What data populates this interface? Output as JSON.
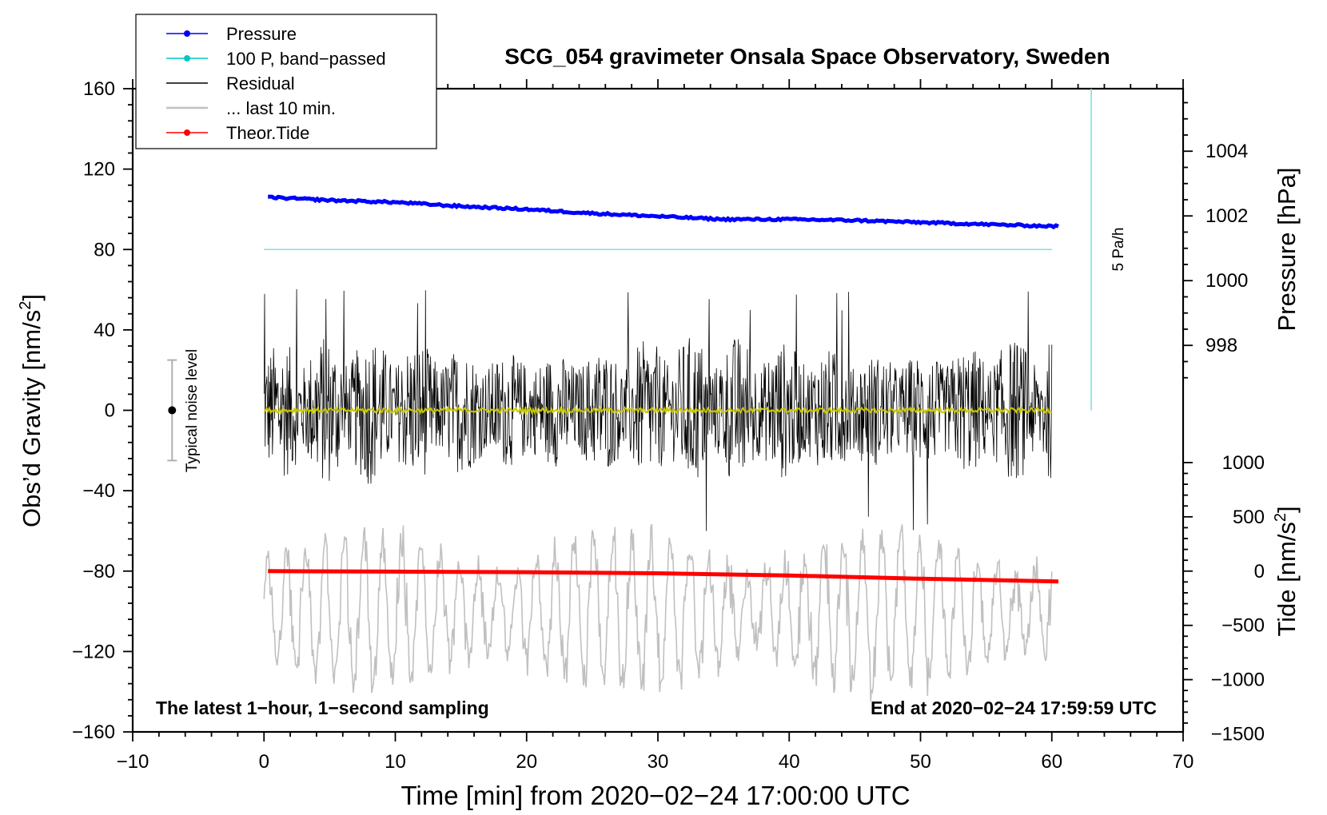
{
  "chart_data": {
    "type": "line",
    "title": "SCG_054 gravimeter Onsala Space Observatory, Sweden",
    "xlabel": "Time [min] from 2020−02−24 17:00:00 UTC",
    "ylabel_left": "Obs’d Gravity [nm/s",
    "ylabel_left_sup": "2",
    "ylabel_left_end": "]",
    "ylabel_right_pressure": "Pressure [hPa]",
    "ylabel_right_tide": "Tide [nm/s",
    "ylabel_right_tide_sup": "2",
    "ylabel_right_tide_end": "]",
    "xlim": [
      -10,
      70
    ],
    "ylim": [
      -160,
      160
    ],
    "x_ticks": [
      {
        "v": -10,
        "label": "−10"
      },
      {
        "v": 0,
        "label": "0"
      },
      {
        "v": 10,
        "label": "10"
      },
      {
        "v": 20,
        "label": "20"
      },
      {
        "v": 30,
        "label": "30"
      },
      {
        "v": 40,
        "label": "40"
      },
      {
        "v": 50,
        "label": "50"
      },
      {
        "v": 60,
        "label": "60"
      },
      {
        "v": 70,
        "label": "70"
      }
    ],
    "y_ticks": [
      {
        "v": 160,
        "label": "160"
      },
      {
        "v": 120,
        "label": "120"
      },
      {
        "v": 80,
        "label": "80"
      },
      {
        "v": 40,
        "label": "40"
      },
      {
        "v": 0,
        "label": "0"
      },
      {
        "v": -40,
        "label": "−40"
      },
      {
        "v": -80,
        "label": "−80"
      },
      {
        "v": -120,
        "label": "−120"
      },
      {
        "v": -160,
        "label": "−160"
      }
    ],
    "pressure_axis": {
      "gravity_at_998": 32.3,
      "gravity_per_hPa": 16.1,
      "ticks": [
        {
          "v": 1004,
          "label": "1004"
        },
        {
          "v": 1002,
          "label": "1002"
        },
        {
          "v": 1000,
          "label": "1000"
        },
        {
          "v": 998,
          "label": "998"
        }
      ]
    },
    "tide_axis": {
      "gravity_at_0": -80,
      "gravity_per_unit": 0.054,
      "ticks": [
        {
          "v": 1000,
          "label": "1000"
        },
        {
          "v": 500,
          "label": "500"
        },
        {
          "v": 0,
          "label": "0"
        },
        {
          "v": -500,
          "label": "−500"
        },
        {
          "v": -1000,
          "label": "−1000"
        },
        {
          "v": -1500,
          "label": "−1500"
        }
      ]
    },
    "legend": {
      "position": "top-left",
      "entries": [
        {
          "label": "Pressure",
          "color": "#0000ff",
          "marker": true
        },
        {
          "label": "100 P, band−passed",
          "color": "#00c8c8",
          "marker": true
        },
        {
          "label": "Residual",
          "color": "#000000",
          "marker": false
        },
        {
          "label": "... last 10 min.",
          "color": "#c0c0c0",
          "marker": false
        },
        {
          "label": "Theor.Tide",
          "color": "#ff0000",
          "marker": true
        }
      ]
    },
    "annotations": {
      "bottom_left": "The latest 1−hour, 1−second sampling",
      "bottom_right": "End at 2020−02−24 17:59:59 UTC",
      "noise_label": "Typical noise level",
      "rate_label": "5 Pa/h"
    },
    "series": {
      "pressure": {
        "name": "Pressure",
        "color": "#0000ff",
        "x": [
          0.3,
          5,
          10,
          15,
          20,
          25,
          30,
          35,
          40,
          45,
          50,
          55,
          60.5
        ],
        "gravity_values": [
          106,
          104.5,
          103.5,
          101.5,
          100,
          98,
          96.5,
          95,
          95,
          94.5,
          93.5,
          92.5,
          91.5
        ]
      },
      "band_passed": {
        "name": "100 P, band−passed",
        "color": "#7fdede",
        "x": [
          0,
          60
        ],
        "gravity_values": [
          80,
          80
        ]
      },
      "residual": {
        "name": "Residual",
        "color": "#000000",
        "x_range": [
          0,
          60
        ],
        "mean": 0,
        "amplitude": 38,
        "max": 62,
        "min": -63
      },
      "residual_smoothed": {
        "name": "Residual smoothed",
        "color": "#c8c800",
        "x_range": [
          0,
          60
        ],
        "mean": 0
      },
      "last_10_min": {
        "name": "... last 10 min.",
        "color": "#c0c0c0",
        "x_range": [
          0,
          60
        ],
        "mean": -100,
        "max": -55,
        "min": -160
      },
      "tide": {
        "name": "Theor.Tide",
        "color": "#ff0000",
        "x": [
          0.3,
          10,
          20,
          30,
          40,
          50,
          60.5
        ],
        "values": [
          0,
          -5,
          -10,
          -20,
          -40,
          -70,
          -95
        ]
      },
      "rate_bar": {
        "name": "5 Pa/h",
        "color": "#7fdede",
        "x": 63,
        "gravity_from": 0,
        "gravity_to": 160
      },
      "noise_bar": {
        "x": -7,
        "center": 0,
        "half_range": 25
      }
    }
  }
}
